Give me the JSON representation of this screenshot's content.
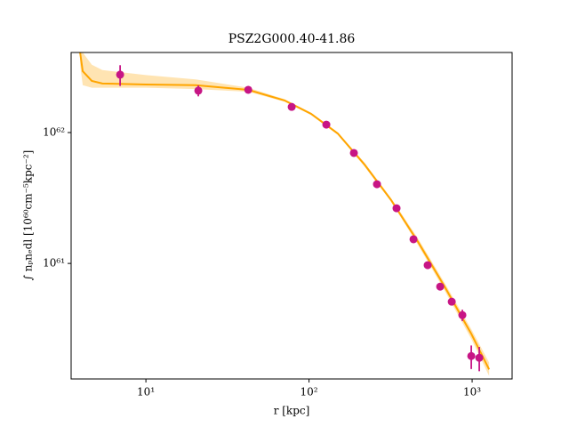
{
  "chart_data": {
    "type": "scatter",
    "title": "PSZ2G000.40-41.86",
    "x_label": "r [kpc]",
    "y_label": "∫ nₚnₑdl [10⁶⁰cm⁻⁵kpc⁻²]",
    "log_x": true,
    "log_y": true,
    "xlim": [
      3.48,
      1758
    ],
    "ylim": [
      1.31e+60,
      4.09e+62
    ],
    "xticks": [
      {
        "value": 10,
        "label": "10¹"
      },
      {
        "value": 100,
        "label": "10²"
      },
      {
        "value": 1000,
        "label": "10³"
      }
    ],
    "yticks": [
      {
        "value": 1e+61,
        "label": "10⁶¹"
      },
      {
        "value": 1e+62,
        "label": "10⁶²"
      }
    ],
    "points": {
      "color": "#c71585",
      "x": [
        6.95,
        20.96,
        42.4,
        78.3,
        127.7,
        188.4,
        261,
        344,
        437,
        534,
        637,
        750,
        871,
        988,
        1106
      ],
      "values": [
        2.77e+62,
        2.09e+62,
        2.12e+62,
        1.57e+62,
        1.15e+62,
        6.98e+61,
        4.03e+61,
        2.64e+61,
        1.53e+61,
        9.7e+60,
        6.65e+60,
        5.1e+60,
        4.03e+60,
        1.96e+60,
        1.9e+60
      ],
      "yerr": [
        5e+61,
        2e+61,
        5e+60,
        4e+60,
        3e+60,
        1.5e+60,
        1e+60,
        6e+59,
        4e+59,
        3e+59,
        2.5e+59,
        2e+59,
        4e+59,
        4e+59,
        4e+59
      ]
    },
    "model": {
      "color": "#ffa500",
      "x": [
        3.95,
        4.1,
        4.66,
        5.41,
        10,
        20.2,
        42.4,
        70.8,
        103,
        150,
        219,
        319,
        466,
        678,
        988,
        1271
      ],
      "values": [
        4.09e+62,
        2.94e+62,
        2.48e+62,
        2.37e+62,
        2.33e+62,
        2.3e+62,
        2.12e+62,
        1.76e+62,
        1.39e+62,
        9.84e+61,
        5.69e+61,
        3.04e+61,
        1.46e+61,
        6.65e+60,
        2.9e+60,
        1.55e+60
      ],
      "band_upper": [
        4.5e+62,
        4.09e+62,
        3.3e+62,
        3e+62,
        2.75e+62,
        2.55e+62,
        2.2e+62,
        1.8e+62,
        1.42e+62,
        1e+62,
        5.9e+61,
        3.15e+61,
        1.55e+61,
        7.1e+60,
        3.15e+60,
        1.75e+60
      ],
      "band_lower": [
        3.3e+62,
        2.3e+62,
        2.2e+62,
        2.2e+62,
        2.2e+62,
        2.15e+62,
        2.05e+62,
        1.72e+62,
        1.36e+62,
        9.6e+61,
        5.5e+61,
        2.95e+61,
        1.38e+61,
        6.2e+60,
        2.65e+60,
        1.38e+60
      ]
    }
  }
}
